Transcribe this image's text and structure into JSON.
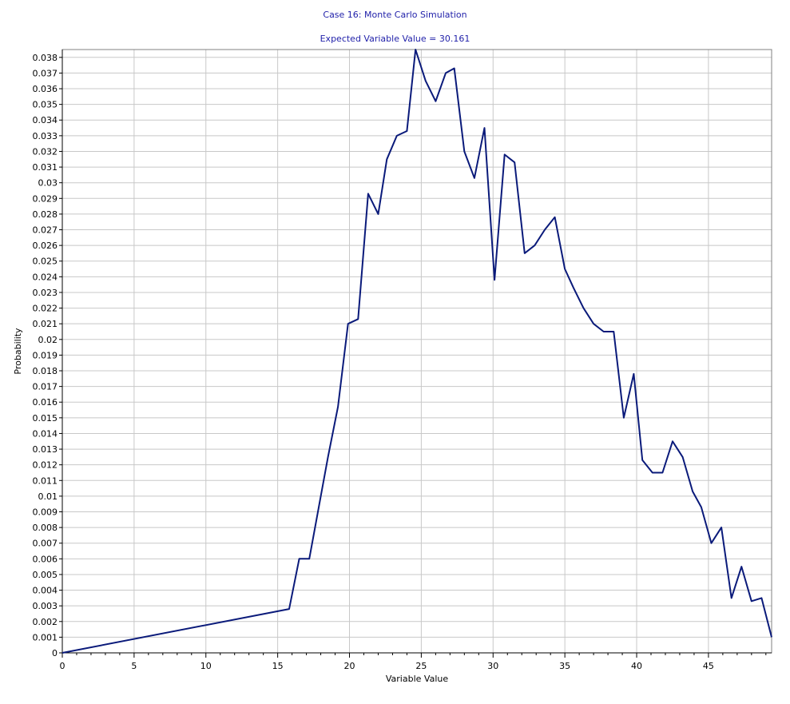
{
  "chart_data": {
    "type": "line",
    "title": "Case 16: Monte Carlo Simulation",
    "subtitle": "Expected Variable Value = 30.161",
    "xlabel": "Variable Value",
    "ylabel": "Probability",
    "xlim": [
      0,
      49.4
    ],
    "ylim": [
      0,
      0.0385
    ],
    "grid": true,
    "line_color": "#0a1a7a",
    "x_ticks": [
      0,
      5,
      10,
      15,
      20,
      25,
      30,
      35,
      40,
      45
    ],
    "y_ticks": [
      "0",
      "0.001",
      "0.002",
      "0.003",
      "0.004",
      "0.005",
      "0.006",
      "0.007",
      "0.008",
      "0.009",
      "0.01",
      "0.011",
      "0.012",
      "0.013",
      "0.014",
      "0.015",
      "0.016",
      "0.017",
      "0.018",
      "0.019",
      "0.02",
      "0.021",
      "0.022",
      "0.023",
      "0.024",
      "0.025",
      "0.026",
      "0.027",
      "0.028",
      "0.029",
      "0.03",
      "0.031",
      "0.032",
      "0.033",
      "0.034",
      "0.035",
      "0.036",
      "0.037",
      "0.038"
    ],
    "x": [
      0,
      15.8,
      16.5,
      17.2,
      17.9,
      18.5,
      19.2,
      19.9,
      20.6,
      21.3,
      22.0,
      22.6,
      23.3,
      24.0,
      24.6,
      25.3,
      26.0,
      26.7,
      27.3,
      28.0,
      28.7,
      29.4,
      30.1,
      30.8,
      31.5,
      32.2,
      32.9,
      33.6,
      34.3,
      35.0,
      35.6,
      36.3,
      37.0,
      37.7,
      38.4,
      39.1,
      39.8,
      40.4,
      41.1,
      41.8,
      42.5,
      43.2,
      43.9,
      44.5,
      45.2,
      45.9,
      46.6,
      47.3,
      48.0,
      48.7,
      49.4
    ],
    "y": [
      0,
      0.0028,
      0.006,
      0.006,
      0.0095,
      0.0125,
      0.0157,
      0.021,
      0.0213,
      0.0293,
      0.028,
      0.0315,
      0.033,
      0.0333,
      0.0385,
      0.0365,
      0.0352,
      0.037,
      0.0373,
      0.032,
      0.0303,
      0.0335,
      0.0238,
      0.0318,
      0.0313,
      0.0255,
      0.026,
      0.027,
      0.0278,
      0.0245,
      0.0233,
      0.022,
      0.021,
      0.0205,
      0.0205,
      0.015,
      0.0178,
      0.0123,
      0.0115,
      0.0115,
      0.0135,
      0.0125,
      0.0103,
      0.0093,
      0.007,
      0.008,
      0.0035,
      0.0055,
      0.0033,
      0.0035,
      0.001
    ]
  }
}
